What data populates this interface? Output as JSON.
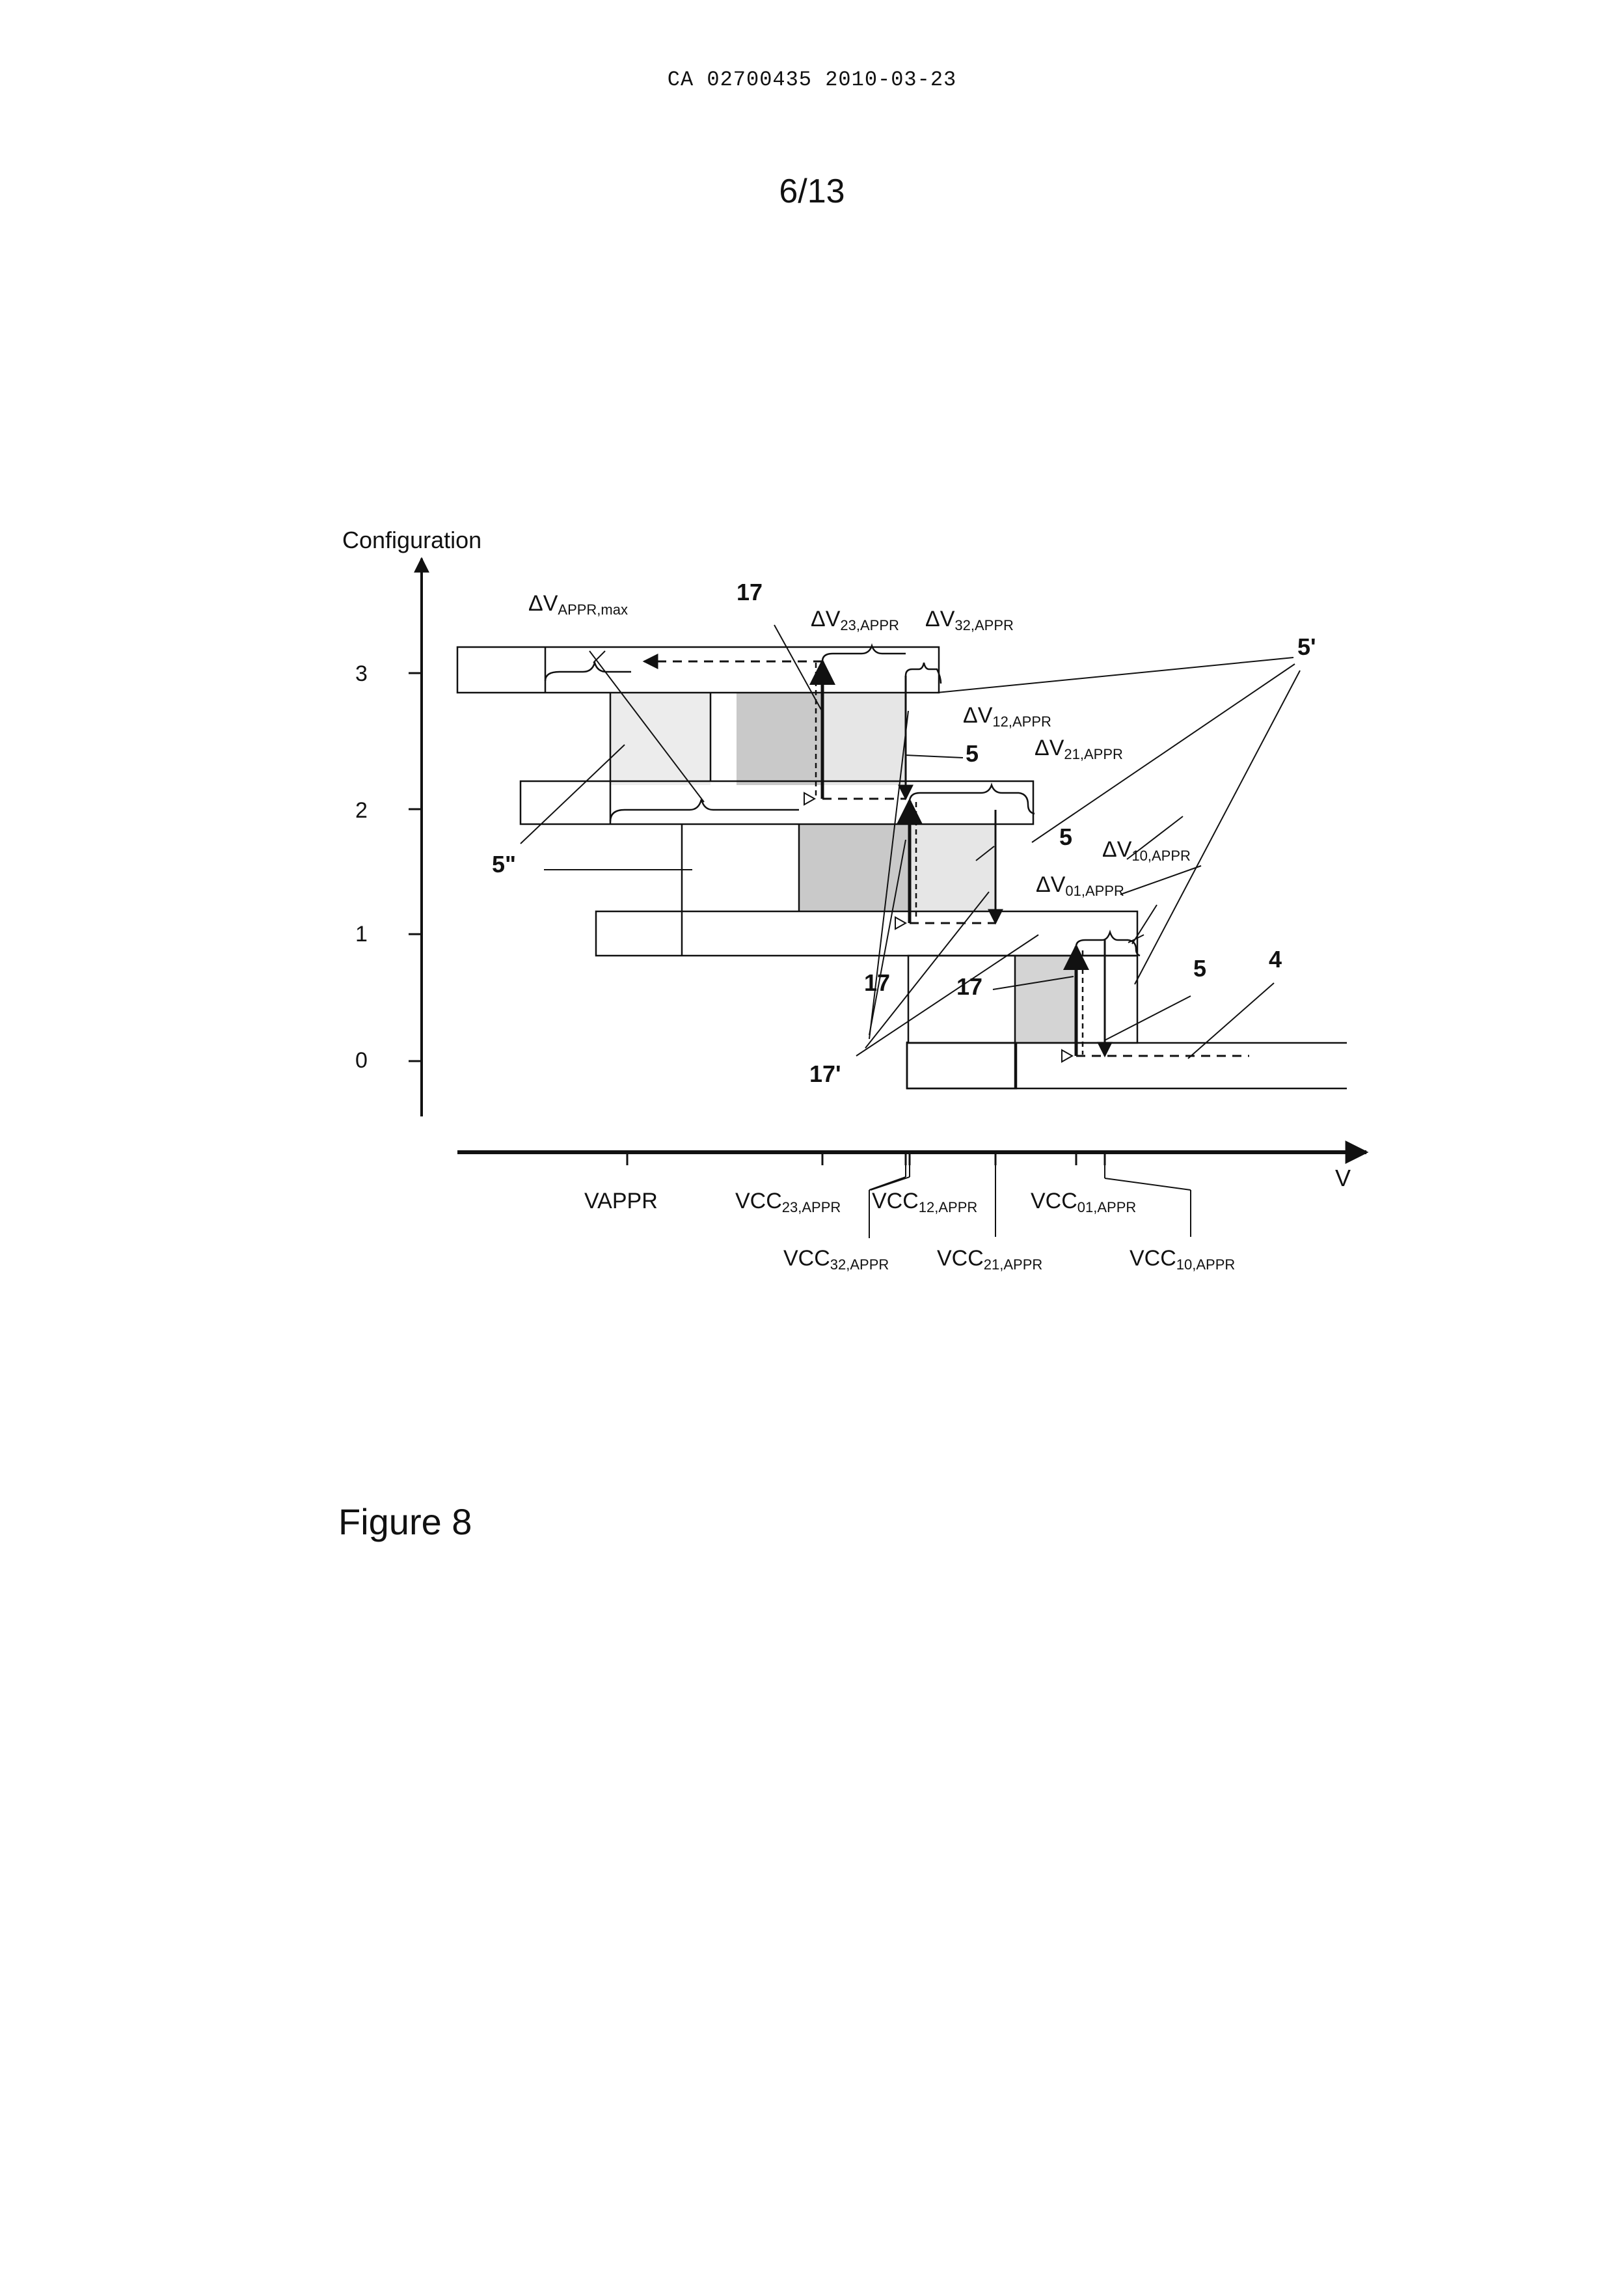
{
  "header": {
    "doc_id": "CA 02700435 2010-03-23"
  },
  "page": {
    "number": "6/13"
  },
  "figure": {
    "caption": "Figure 8",
    "y_axis": {
      "label": "Configuration",
      "ticks": [
        "0",
        "1",
        "2",
        "3"
      ]
    },
    "x_axis": {
      "label": "V",
      "ticks": [
        {
          "name": "VAPPR",
          "base": "VAPPR",
          "sub": ""
        },
        {
          "name": "VCC23",
          "base": "VCC",
          "sub": "23,APPR"
        },
        {
          "name": "VCC32",
          "base": "VCC",
          "sub": "32,APPR"
        },
        {
          "name": "VCC12",
          "base": "VCC",
          "sub": "12,APPR"
        },
        {
          "name": "VCC21",
          "base": "VCC",
          "sub": "21,APPR"
        },
        {
          "name": "VCC01",
          "base": "VCC",
          "sub": "01,APPR"
        },
        {
          "name": "VCC10",
          "base": "VCC",
          "sub": "10,APPR"
        }
      ]
    },
    "delta_labels": {
      "appr_max": {
        "base": "ΔV",
        "sub": "APPR,max"
      },
      "d23": {
        "base": "ΔV",
        "sub": "23,APPR"
      },
      "d32": {
        "base": "ΔV",
        "sub": "32,APPR"
      },
      "d12": {
        "base": "ΔV",
        "sub": "12,APPR"
      },
      "d21": {
        "base": "ΔV",
        "sub": "21,APPR"
      },
      "d10": {
        "base": "ΔV",
        "sub": "10,APPR"
      },
      "d01": {
        "base": "ΔV",
        "sub": "01,APPR"
      }
    },
    "reference_numerals": {
      "r17": "17",
      "r17p": "17'",
      "r5": "5",
      "r5p": "5'",
      "r5pp": "5\"",
      "r4": "4"
    }
  }
}
